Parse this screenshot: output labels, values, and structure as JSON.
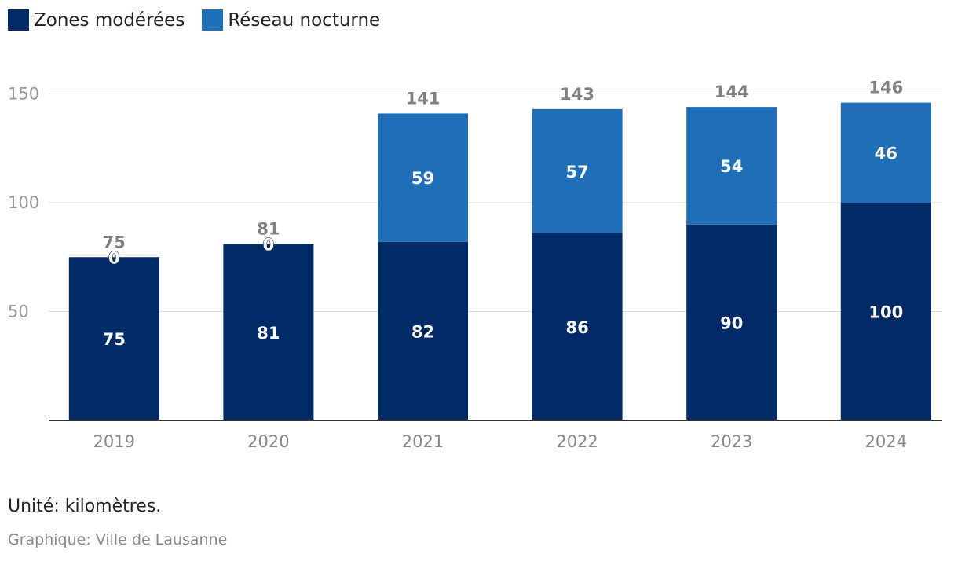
{
  "legend": {
    "items": [
      {
        "label": "Zones modérées",
        "color": "#002b66"
      },
      {
        "label": "Réseau nocturne",
        "color": "#1f6fb8"
      }
    ]
  },
  "notes": {
    "unit": "Unité: kilomètres.",
    "source": "Graphique: Ville de Lausanne"
  },
  "chart_data": {
    "type": "bar",
    "stacked": true,
    "categories": [
      "2019",
      "2020",
      "2021",
      "2022",
      "2023",
      "2024"
    ],
    "series": [
      {
        "name": "Zones modérées",
        "color": "#002b66",
        "values": [
          75,
          81,
          82,
          86,
          90,
          100
        ]
      },
      {
        "name": "Réseau nocturne",
        "color": "#1f6fb8",
        "values": [
          0,
          0,
          59,
          57,
          54,
          46
        ]
      }
    ],
    "totals": [
      75,
      81,
      141,
      143,
      144,
      146
    ],
    "yticks": [
      50,
      100,
      150
    ],
    "ylim": [
      0,
      150
    ],
    "grid": true,
    "legend_position": "top-left",
    "title": "",
    "xlabel": "",
    "ylabel": ""
  }
}
